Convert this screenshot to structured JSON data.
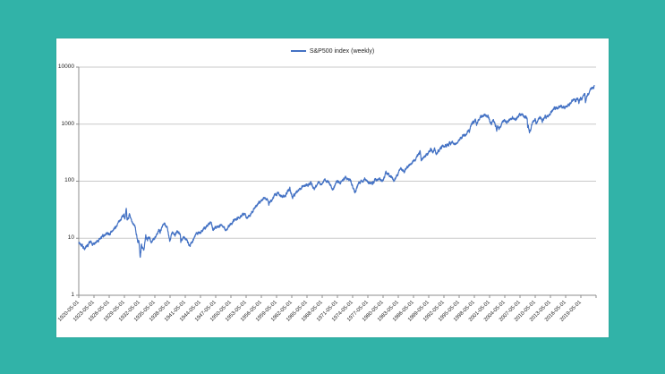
{
  "colors": {
    "background": "#31b3a8",
    "card": "#ffffff",
    "series_line": "#4472c4",
    "gridline": "#c9c9c9",
    "axis": "#8c8c8c",
    "text": "#262626"
  },
  "legend": {
    "label": "S&P500 index (weekly)"
  },
  "chart_data": {
    "type": "line",
    "title": "",
    "legend_position": "top-center",
    "grid": true,
    "series_name": "S&P500 index (weekly)",
    "series_color": "#4472c4",
    "y_axis": {
      "scale": "log",
      "range": [
        1,
        10000
      ],
      "tick_labels": [
        "1",
        "10",
        "100",
        "1000",
        "10000"
      ]
    },
    "x_axis": {
      "range_years": [
        1920.33,
        2022.33
      ],
      "label_rotation_deg": -45,
      "tick_interval": "3 years (156 weeks)",
      "tick_labels": [
        "1920-05-01",
        "1923-05-01",
        "1926-05-01",
        "1929-05-01",
        "1932-05-01",
        "1935-05-01",
        "1938-05-01",
        "1941-05-01",
        "1944-05-01",
        "1947-05-01",
        "1950-05-01",
        "1953-05-01",
        "1956-05-01",
        "1959-05-01",
        "1962-05-01",
        "1965-05-01",
        "1968-05-01",
        "1971-05-01",
        "1974-05-01",
        "1977-05-01",
        "1980-05-01",
        "1983-05-01",
        "1986-05-01",
        "1989-05-01",
        "1992-05-01",
        "1995-05-01",
        "1998-05-01",
        "2001-05-01",
        "2004-05-01",
        "2007-05-01",
        "2010-05-01",
        "2013-05-01",
        "2016-05-01",
        "2019-05-01"
      ]
    },
    "sampling_note": "weekly closes; anchor points [decimal_year, index_value] read from chart",
    "series_points": [
      [
        1920.35,
        8.6
      ],
      [
        1920.8,
        7.7
      ],
      [
        1921.6,
        6.45
      ],
      [
        1922.5,
        8.4
      ],
      [
        1923.4,
        7.9
      ],
      [
        1924.2,
        8.9
      ],
      [
        1925.0,
        10.6
      ],
      [
        1926.0,
        12.6
      ],
      [
        1926.4,
        11.7
      ],
      [
        1927.0,
        13.4
      ],
      [
        1928.0,
        17.4
      ],
      [
        1928.9,
        24.0
      ],
      [
        1929.2,
        25.9
      ],
      [
        1929.4,
        23.0
      ],
      [
        1929.7,
        31.3
      ],
      [
        1929.85,
        20.5
      ],
      [
        1930.3,
        25.3
      ],
      [
        1930.9,
        18.0
      ],
      [
        1931.4,
        16.8
      ],
      [
        1931.8,
        10.5
      ],
      [
        1932.0,
        8.5
      ],
      [
        1932.2,
        8.8
      ],
      [
        1932.45,
        4.4
      ],
      [
        1932.7,
        7.8
      ],
      [
        1933.1,
        5.9
      ],
      [
        1933.55,
        10.9
      ],
      [
        1933.9,
        9.3
      ],
      [
        1934.1,
        10.7
      ],
      [
        1934.6,
        8.9
      ],
      [
        1935.2,
        9.4
      ],
      [
        1936.1,
        13.9
      ],
      [
        1936.4,
        13.1
      ],
      [
        1937.2,
        18.2
      ],
      [
        1937.5,
        15.5
      ],
      [
        1937.75,
        16.8
      ],
      [
        1938.25,
        8.6
      ],
      [
        1938.6,
        11.5
      ],
      [
        1938.85,
        13.1
      ],
      [
        1939.3,
        10.9
      ],
      [
        1939.7,
        12.9
      ],
      [
        1940.35,
        12.0
      ],
      [
        1940.45,
        9.0
      ],
      [
        1941.0,
        10.5
      ],
      [
        1942.3,
        7.6
      ],
      [
        1943.5,
        12.2
      ],
      [
        1944.5,
        12.9
      ],
      [
        1945.9,
        17.6
      ],
      [
        1946.4,
        19.2
      ],
      [
        1946.75,
        14.7
      ],
      [
        1947.5,
        15.8
      ],
      [
        1948.4,
        17.0
      ],
      [
        1949.4,
        13.9
      ],
      [
        1950.4,
        18.0
      ],
      [
        1951.0,
        21.3
      ],
      [
        1952.0,
        23.9
      ],
      [
        1953.0,
        26.2
      ],
      [
        1953.65,
        22.7
      ],
      [
        1954.7,
        31.0
      ],
      [
        1955.8,
        42.5
      ],
      [
        1956.6,
        49.6
      ],
      [
        1957.55,
        49.1
      ],
      [
        1957.8,
        39.0
      ],
      [
        1958.9,
        55.2
      ],
      [
        1959.6,
        60.7
      ],
      [
        1960.8,
        52.3
      ],
      [
        1961.95,
        72.6
      ],
      [
        1962.5,
        52.3
      ],
      [
        1963.5,
        70.0
      ],
      [
        1964.5,
        81.0
      ],
      [
        1965.4,
        90.0
      ],
      [
        1965.5,
        84.0
      ],
      [
        1966.1,
        94.1
      ],
      [
        1966.75,
        73.2
      ],
      [
        1967.7,
        97.6
      ],
      [
        1968.2,
        87.7
      ],
      [
        1968.9,
        108.4
      ],
      [
        1969.5,
        97.0
      ],
      [
        1970.4,
        72.3
      ],
      [
        1971.3,
        101.0
      ],
      [
        1971.85,
        90.2
      ],
      [
        1972.95,
        119.1
      ],
      [
        1973.6,
        101.0
      ],
      [
        1973.8,
        111.0
      ],
      [
        1974.75,
        62.3
      ],
      [
        1975.55,
        95.6
      ],
      [
        1976.7,
        107.8
      ],
      [
        1978.2,
        87.0
      ],
      [
        1978.7,
        106.0
      ],
      [
        1979.8,
        111.3
      ],
      [
        1980.25,
        98.2
      ],
      [
        1980.9,
        140.5
      ],
      [
        1981.6,
        129.0
      ],
      [
        1982.6,
        102.4
      ],
      [
        1983.75,
        172.6
      ],
      [
        1984.55,
        147.8
      ],
      [
        1985.9,
        207.0
      ],
      [
        1986.7,
        236.0
      ],
      [
        1987.1,
        280.0
      ],
      [
        1987.65,
        336.8
      ],
      [
        1987.85,
        224.8
      ],
      [
        1988.3,
        258.0
      ],
      [
        1989.75,
        359.8
      ],
      [
        1990.1,
        330.0
      ],
      [
        1990.5,
        367.0
      ],
      [
        1990.8,
        295.5
      ],
      [
        1992.0,
        417.0
      ],
      [
        1993.0,
        435.0
      ],
      [
        1994.1,
        482.0
      ],
      [
        1994.5,
        445.0
      ],
      [
        1995.0,
        460.0
      ],
      [
        1996.0,
        636.0
      ],
      [
        1996.6,
        665.0
      ],
      [
        1997.2,
        810.0
      ],
      [
        1997.35,
        737.0
      ],
      [
        1997.75,
        983.0
      ],
      [
        1998.55,
        1186.0
      ],
      [
        1998.75,
        957.0
      ],
      [
        1999.5,
        1418.0
      ],
      [
        1999.8,
        1280.0
      ],
      [
        2000.25,
        1527.0
      ],
      [
        2000.9,
        1350.0
      ],
      [
        2001.05,
        1373.0
      ],
      [
        2001.7,
        966.0
      ],
      [
        2001.95,
        1172.0
      ],
      [
        2002.3,
        1111.0
      ],
      [
        2002.75,
        800.0
      ],
      [
        2002.9,
        936.0
      ],
      [
        2003.2,
        829.0
      ],
      [
        2004.1,
        1157.0
      ],
      [
        2004.6,
        1086.0
      ],
      [
        2005.9,
        1270.0
      ],
      [
        2006.5,
        1240.0
      ],
      [
        2007.4,
        1530.0
      ],
      [
        2007.6,
        1430.0
      ],
      [
        2007.78,
        1561.0
      ],
      [
        2008.2,
        1330.0
      ],
      [
        2008.4,
        1400.0
      ],
      [
        2008.75,
        1255.0
      ],
      [
        2008.85,
        900.0
      ],
      [
        2009.0,
        890.0
      ],
      [
        2009.2,
        683.0
      ],
      [
        2009.8,
        1090.0
      ],
      [
        2010.3,
        1217.0
      ],
      [
        2010.5,
        1023.0
      ],
      [
        2011.3,
        1360.0
      ],
      [
        2011.6,
        1260.0
      ],
      [
        2011.75,
        1120.0
      ],
      [
        2011.95,
        1255.0
      ],
      [
        2012.3,
        1400.0
      ],
      [
        2012.45,
        1290.0
      ],
      [
        2013.0,
        1460.0
      ],
      [
        2013.9,
        1800.0
      ],
      [
        2014.7,
        2010.0
      ],
      [
        2014.8,
        1880.0
      ],
      [
        2015.4,
        2120.0
      ],
      [
        2015.65,
        1880.0
      ],
      [
        2015.9,
        2090.0
      ],
      [
        2016.1,
        1865.0
      ],
      [
        2016.5,
        2100.0
      ],
      [
        2016.85,
        2130.0
      ],
      [
        2017.9,
        2650.0
      ],
      [
        2018.07,
        2870.0
      ],
      [
        2018.25,
        2590.0
      ],
      [
        2018.5,
        2720.0
      ],
      [
        2018.73,
        2930.0
      ],
      [
        2018.98,
        2350.0
      ],
      [
        2019.3,
        2900.0
      ],
      [
        2019.55,
        2750.0
      ],
      [
        2019.95,
        3230.0
      ],
      [
        2020.13,
        3380.0
      ],
      [
        2020.23,
        2260.0
      ],
      [
        2020.45,
        2950.0
      ],
      [
        2020.65,
        3400.0
      ],
      [
        2020.85,
        3270.0
      ],
      [
        2021.0,
        3760.0
      ],
      [
        2021.4,
        4180.0
      ],
      [
        2021.7,
        4530.0
      ],
      [
        2021.85,
        4350.0
      ],
      [
        2022.0,
        4790.0
      ]
    ]
  }
}
